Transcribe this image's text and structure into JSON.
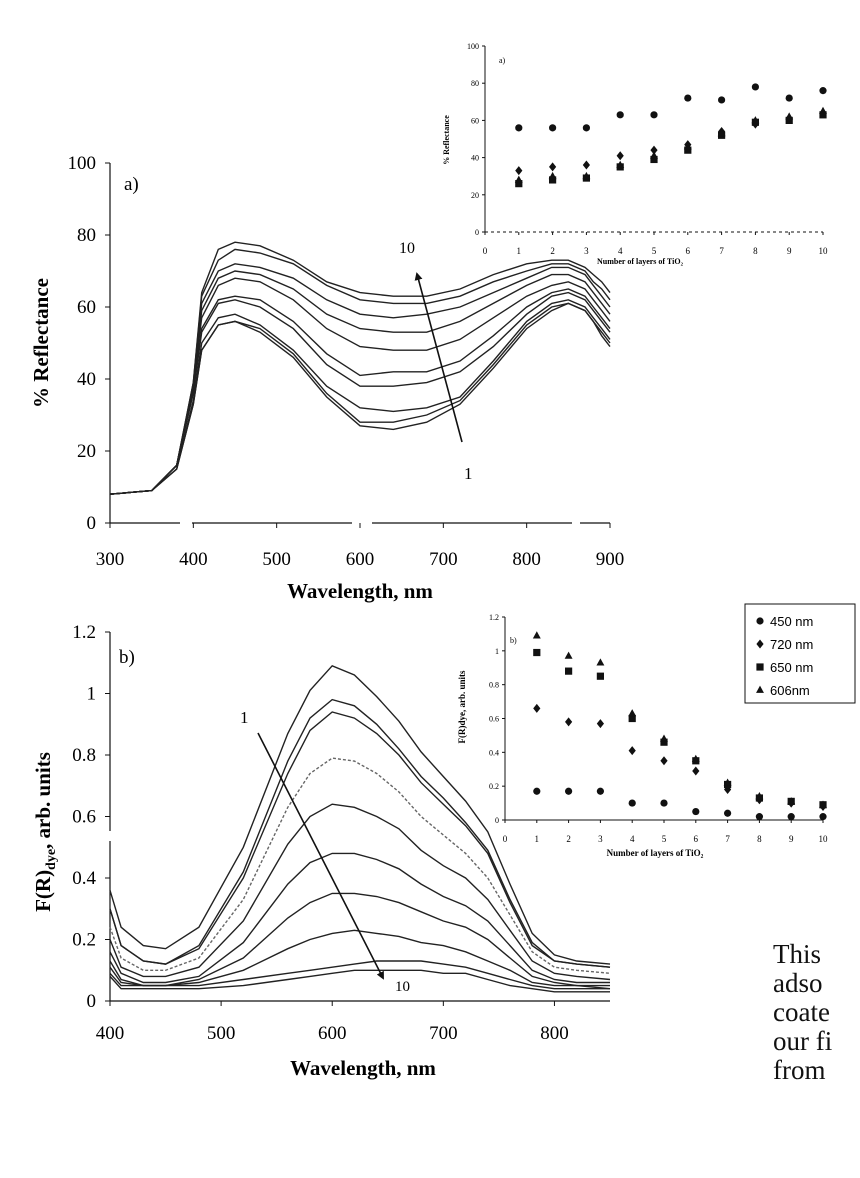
{
  "figure": {
    "side_text_lines": [
      "This",
      "adso",
      "coate",
      "our fi",
      "from"
    ]
  },
  "chart_data": [
    {
      "id": "a_main",
      "panel_label": "a)",
      "type": "line",
      "xlabel": "Wavelength, nm",
      "ylabel": "% Reflectance",
      "xlim": [
        300,
        900
      ],
      "ylim": [
        0,
        100
      ],
      "xticks": [
        300,
        400,
        500,
        600,
        700,
        800,
        900
      ],
      "yticks": [
        0,
        20,
        40,
        60,
        80,
        100
      ],
      "annotations": {
        "arrow_start_label": "1",
        "arrow_end_label": "10"
      },
      "x": [
        300,
        350,
        380,
        400,
        410,
        430,
        450,
        480,
        520,
        560,
        600,
        640,
        680,
        720,
        760,
        800,
        830,
        850,
        870,
        880,
        890,
        900
      ],
      "series": [
        {
          "values": [
            8,
            9,
            15,
            33,
            48,
            55,
            56,
            53,
            46,
            35,
            27,
            26,
            28,
            33,
            43,
            54,
            59,
            61,
            59,
            56,
            52,
            49
          ]
        },
        {
          "values": [
            8,
            9,
            15,
            33,
            48,
            55,
            56,
            54,
            47,
            36,
            28,
            28,
            30,
            34,
            44,
            55,
            60,
            61,
            59,
            56,
            53,
            50
          ]
        },
        {
          "values": [
            8,
            9,
            15,
            34,
            50,
            57,
            58,
            55,
            48,
            38,
            32,
            31,
            32,
            35,
            45,
            56,
            61,
            62,
            60,
            57,
            54,
            51
          ]
        },
        {
          "values": [
            8,
            9,
            16,
            36,
            53,
            61,
            62,
            60,
            54,
            44,
            38,
            38,
            39,
            42,
            49,
            58,
            63,
            64,
            62,
            59,
            56,
            53
          ]
        },
        {
          "values": [
            8,
            9,
            16,
            37,
            54,
            62,
            63,
            62,
            56,
            47,
            41,
            42,
            42,
            45,
            52,
            60,
            64,
            65,
            63,
            60,
            57,
            54
          ]
        },
        {
          "values": [
            8,
            9,
            16,
            38,
            57,
            66,
            68,
            67,
            62,
            54,
            49,
            48,
            48,
            51,
            57,
            63,
            66,
            67,
            65,
            62,
            59,
            56
          ]
        },
        {
          "values": [
            8,
            9,
            16,
            38,
            59,
            68,
            70,
            69,
            65,
            58,
            54,
            53,
            53,
            56,
            61,
            66,
            69,
            69,
            67,
            64,
            61,
            58
          ]
        },
        {
          "values": [
            8,
            9,
            16,
            38,
            61,
            70,
            72,
            71,
            68,
            62,
            58,
            57,
            58,
            60,
            64,
            68,
            71,
            71,
            69,
            66,
            63,
            60
          ]
        },
        {
          "values": [
            8,
            9,
            16,
            39,
            63,
            73,
            76,
            75,
            72,
            66,
            62,
            61,
            61,
            63,
            67,
            70,
            72,
            72,
            70,
            67,
            65,
            62
          ]
        },
        {
          "values": [
            8,
            9,
            16,
            39,
            64,
            76,
            78,
            77,
            73,
            67,
            64,
            63,
            63,
            65,
            69,
            72,
            73,
            73,
            71,
            69,
            67,
            64
          ]
        }
      ]
    },
    {
      "id": "a_inset",
      "panel_label": "a)",
      "type": "scatter",
      "xlabel": "Number of layers of TiO₂",
      "ylabel": "% Reflectance",
      "xlim": [
        0,
        10
      ],
      "ylim": [
        0,
        100
      ],
      "xticks": [
        0,
        1,
        2,
        3,
        4,
        5,
        6,
        7,
        8,
        9,
        10
      ],
      "yticks": [
        0,
        20,
        40,
        60,
        80,
        100
      ],
      "x": [
        1,
        2,
        3,
        4,
        5,
        6,
        7,
        8,
        9,
        10
      ],
      "series": [
        {
          "marker": "circle",
          "values": [
            56,
            56,
            56,
            63,
            63,
            72,
            71,
            78,
            72,
            76
          ]
        },
        {
          "marker": "diamond",
          "values": [
            33,
            35,
            36,
            41,
            44,
            47,
            54,
            58,
            61,
            64
          ]
        },
        {
          "marker": "square",
          "values": [
            26,
            28,
            29,
            35,
            39,
            44,
            52,
            59,
            60,
            63
          ]
        },
        {
          "marker": "triangle",
          "values": [
            28,
            30,
            30,
            36,
            41,
            46,
            53,
            60,
            62,
            65
          ]
        }
      ]
    },
    {
      "id": "b_main",
      "panel_label": "b)",
      "type": "line",
      "xlabel": "Wavelength, nm",
      "ylabel_main": "F(R)",
      "ylabel_sub": "dye",
      "ylabel_tail": ",   arb. units",
      "xlim": [
        400,
        850
      ],
      "ylim": [
        0,
        1.2
      ],
      "xticks": [
        400,
        500,
        600,
        700,
        800
      ],
      "yticks": [
        0,
        0.2,
        0.4,
        0.6,
        0.8,
        1,
        1.2
      ],
      "ytick_labels": [
        "0",
        "0.2",
        "0.4",
        "0.6",
        "0.8",
        "1",
        "1.2"
      ],
      "annotations": {
        "arrow_start_label": "1",
        "arrow_end_label": "10"
      },
      "x": [
        400,
        410,
        430,
        450,
        480,
        520,
        560,
        580,
        600,
        620,
        640,
        660,
        680,
        700,
        720,
        740,
        760,
        780,
        800,
        820,
        850
      ],
      "series": [
        {
          "values": [
            0.36,
            0.24,
            0.18,
            0.17,
            0.24,
            0.5,
            0.87,
            1.01,
            1.09,
            1.06,
            0.99,
            0.91,
            0.81,
            0.73,
            0.65,
            0.55,
            0.38,
            0.22,
            0.15,
            0.13,
            0.12
          ]
        },
        {
          "values": [
            0.3,
            0.18,
            0.13,
            0.12,
            0.18,
            0.42,
            0.78,
            0.92,
            0.98,
            0.96,
            0.9,
            0.82,
            0.73,
            0.66,
            0.58,
            0.49,
            0.33,
            0.19,
            0.13,
            0.12,
            0.11
          ]
        },
        {
          "values": [
            0.3,
            0.18,
            0.13,
            0.12,
            0.17,
            0.4,
            0.74,
            0.88,
            0.94,
            0.92,
            0.87,
            0.8,
            0.71,
            0.64,
            0.57,
            0.48,
            0.32,
            0.18,
            0.13,
            0.12,
            0.11
          ]
        },
        {
          "values": [
            0.24,
            0.14,
            0.1,
            0.1,
            0.14,
            0.33,
            0.63,
            0.74,
            0.79,
            0.78,
            0.74,
            0.68,
            0.6,
            0.54,
            0.48,
            0.4,
            0.28,
            0.16,
            0.11,
            0.1,
            0.09
          ]
        },
        {
          "values": [
            0.2,
            0.11,
            0.08,
            0.08,
            0.11,
            0.26,
            0.51,
            0.6,
            0.64,
            0.63,
            0.6,
            0.56,
            0.49,
            0.44,
            0.4,
            0.33,
            0.23,
            0.13,
            0.09,
            0.08,
            0.07
          ]
        },
        {
          "values": [
            0.16,
            0.09,
            0.06,
            0.06,
            0.08,
            0.19,
            0.38,
            0.45,
            0.48,
            0.48,
            0.46,
            0.43,
            0.38,
            0.34,
            0.31,
            0.26,
            0.18,
            0.1,
            0.07,
            0.06,
            0.06
          ]
        },
        {
          "values": [
            0.13,
            0.07,
            0.05,
            0.05,
            0.07,
            0.14,
            0.27,
            0.32,
            0.35,
            0.35,
            0.34,
            0.32,
            0.29,
            0.26,
            0.24,
            0.2,
            0.14,
            0.08,
            0.06,
            0.05,
            0.05
          ]
        },
        {
          "values": [
            0.11,
            0.06,
            0.05,
            0.05,
            0.06,
            0.1,
            0.17,
            0.2,
            0.22,
            0.23,
            0.22,
            0.21,
            0.19,
            0.18,
            0.16,
            0.13,
            0.1,
            0.06,
            0.05,
            0.05,
            0.04
          ]
        },
        {
          "values": [
            0.09,
            0.05,
            0.05,
            0.05,
            0.05,
            0.07,
            0.09,
            0.1,
            0.11,
            0.12,
            0.13,
            0.13,
            0.13,
            0.12,
            0.11,
            0.09,
            0.07,
            0.05,
            0.04,
            0.04,
            0.04
          ]
        },
        {
          "values": [
            0.08,
            0.04,
            0.04,
            0.04,
            0.04,
            0.05,
            0.07,
            0.08,
            0.09,
            0.1,
            0.1,
            0.1,
            0.1,
            0.09,
            0.09,
            0.07,
            0.05,
            0.04,
            0.03,
            0.03,
            0.03
          ]
        }
      ]
    },
    {
      "id": "b_inset",
      "panel_label": "b)",
      "type": "scatter",
      "xlabel": "Number of layers of TiO₂",
      "ylabel": "F(R)dye,  arb. units",
      "xlim": [
        0,
        10
      ],
      "ylim": [
        0,
        1.2
      ],
      "xticks": [
        0,
        1,
        2,
        3,
        4,
        5,
        6,
        7,
        8,
        9,
        10
      ],
      "yticks": [
        0,
        0.2,
        0.4,
        0.6,
        0.8,
        1,
        1.2
      ],
      "ytick_labels": [
        "0",
        "0.2",
        "0.4",
        "0.6",
        "0.8",
        "1",
        "1.2"
      ],
      "legend_position": "top-right",
      "x": [
        1,
        2,
        3,
        4,
        5,
        6,
        7,
        8,
        9,
        10
      ],
      "series": [
        {
          "name": "450 nm",
          "marker": "circle",
          "values": [
            0.17,
            0.17,
            0.17,
            0.1,
            0.1,
            0.05,
            0.04,
            0.02,
            0.02,
            0.02
          ]
        },
        {
          "name": "720 nm",
          "marker": "diamond",
          "values": [
            0.66,
            0.58,
            0.57,
            0.41,
            0.35,
            0.29,
            0.18,
            0.12,
            0.1,
            0.08
          ]
        },
        {
          "name": "650 nm",
          "marker": "square",
          "values": [
            0.99,
            0.88,
            0.85,
            0.6,
            0.46,
            0.35,
            0.21,
            0.13,
            0.11,
            0.09
          ]
        },
        {
          "name": "606nm",
          "marker": "triangle",
          "values": [
            1.09,
            0.97,
            0.93,
            0.63,
            0.48,
            0.36,
            0.22,
            0.14,
            0.11,
            0.09
          ]
        }
      ]
    }
  ]
}
